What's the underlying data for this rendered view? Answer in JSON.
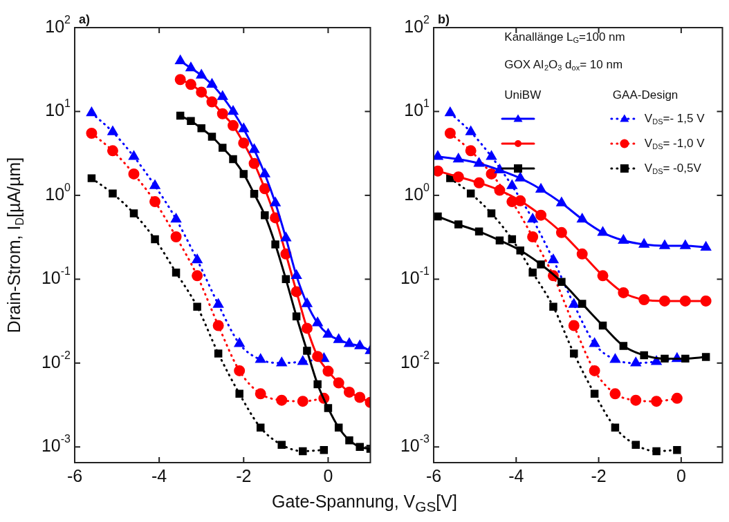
{
  "chart_data": [
    {
      "type": "line",
      "title": "a)",
      "xlabel": "Gate-Spannung, V$_{GS}$[V]",
      "ylabel": "Drain-Strom, I$_{D}$[µA/µm]",
      "xlim": [
        -6,
        1
      ],
      "xticks": [
        -6,
        -4,
        -2,
        0
      ],
      "ylim": [
        0.00065,
        100
      ],
      "log": "y",
      "grid": false,
      "yticks": [
        {
          "value": 0.001,
          "label": "10$^{-3}$"
        },
        {
          "value": 0.01,
          "label": "10$^{-2}$"
        },
        {
          "value": 0.1,
          "label": "10$^{-1}$"
        },
        {
          "value": 1,
          "label": "10$^{0}$"
        },
        {
          "value": 10,
          "label": "10$^{1}$"
        },
        {
          "value": 100,
          "label": "10$^{2}$"
        }
      ],
      "series": [
        {
          "color": "#0000ff",
          "marker": "triangle",
          "line_style": "solid",
          "x": [
            -3.5,
            -3.25,
            -3.0,
            -2.75,
            -2.5,
            -2.25,
            -2.0,
            -1.75,
            -1.5,
            -1.25,
            -1.0,
            -0.75,
            -0.5,
            -0.25,
            0,
            0.25,
            0.5,
            0.75,
            1.0
          ],
          "values": [
            40,
            33,
            27,
            21,
            15,
            10,
            6.2,
            3.5,
            1.8,
            0.81,
            0.31,
            0.11,
            0.051,
            0.03,
            0.022,
            0.019,
            0.017,
            0.016,
            0.014
          ]
        },
        {
          "color": "#ff0000",
          "marker": "circle",
          "line_style": "solid",
          "x": [
            -3.5,
            -3.25,
            -3.0,
            -2.75,
            -2.5,
            -2.25,
            -2.0,
            -1.75,
            -1.5,
            -1.25,
            -1.0,
            -0.75,
            -0.5,
            -0.25,
            0,
            0.25,
            0.5,
            0.75,
            1.0
          ],
          "values": [
            24,
            21,
            17,
            13,
            9.4,
            6.8,
            4.2,
            2.4,
            1.2,
            0.54,
            0.2,
            0.071,
            0.026,
            0.012,
            0.008,
            0.0058,
            0.0045,
            0.0039,
            0.0034
          ]
        },
        {
          "color": "#000000",
          "marker": "square",
          "line_style": "solid",
          "x": [
            -3.5,
            -3.25,
            -3.0,
            -2.75,
            -2.5,
            -2.25,
            -2.0,
            -1.75,
            -1.5,
            -1.25,
            -1.0,
            -0.75,
            -0.5,
            -0.25,
            0,
            0.25,
            0.5,
            0.75,
            1.0
          ],
          "values": [
            8.9,
            7.7,
            6.3,
            5.0,
            3.7,
            2.7,
            1.8,
            1.04,
            0.58,
            0.26,
            0.1,
            0.036,
            0.014,
            0.0056,
            0.0029,
            0.0017,
            0.0012,
            0.001,
            0.00095
          ]
        },
        {
          "color": "#0000ff",
          "marker": "triangle",
          "line_style": "dotted",
          "x": [
            -5.6,
            -5.1,
            -4.6,
            -4.1,
            -3.6,
            -3.1,
            -2.6,
            -2.1,
            -1.6,
            -1.1,
            -0.6,
            -0.1
          ],
          "values": [
            9.6,
            5.7,
            2.9,
            1.3,
            0.52,
            0.17,
            0.05,
            0.017,
            0.011,
            0.01,
            0.0104,
            0.0113
          ]
        },
        {
          "color": "#ff0000",
          "marker": "circle",
          "line_style": "dotted",
          "x": [
            -5.6,
            -5.1,
            -4.6,
            -4.1,
            -3.6,
            -3.1,
            -2.6,
            -2.1,
            -1.6,
            -1.1,
            -0.6,
            -0.1
          ],
          "values": [
            5.5,
            3.4,
            1.8,
            0.84,
            0.32,
            0.11,
            0.028,
            0.0081,
            0.0043,
            0.0036,
            0.0035,
            0.0038
          ]
        },
        {
          "color": "#000000",
          "marker": "square",
          "line_style": "dotted",
          "x": [
            -5.6,
            -5.1,
            -4.6,
            -4.1,
            -3.6,
            -3.1,
            -2.6,
            -2.1,
            -1.6,
            -1.1,
            -0.6,
            -0.1
          ],
          "values": [
            1.6,
            1.05,
            0.61,
            0.3,
            0.12,
            0.047,
            0.013,
            0.0043,
            0.0017,
            0.00106,
            0.00089,
            0.00092
          ]
        }
      ]
    },
    {
      "type": "line",
      "title": "b)",
      "xlim": [
        -6,
        1
      ],
      "xticks": [
        -6,
        -4,
        -2,
        0
      ],
      "ylim": [
        0.00065,
        100
      ],
      "log": "y",
      "grid": false,
      "legend": "top right",
      "yticks": [
        {
          "value": 0.001,
          "label": "10$^{-3}$"
        },
        {
          "value": 0.01,
          "label": "10$^{-2}$"
        },
        {
          "value": 0.1,
          "label": "10$^{-1}$"
        },
        {
          "value": 1,
          "label": "10$^{0}$"
        },
        {
          "value": 10,
          "label": "10$^{1}$"
        },
        {
          "value": 100,
          "label": "10$^{2}$"
        }
      ],
      "annotations": [
        "Kanallänge L$_{G}$=100 nm",
        "GOX Al$_{2}$O$_{3}$ d$_{ox}$= 10 nm",
        "UniBW",
        "GAA-Design"
      ],
      "series": [
        {
          "color": "#0000ff",
          "marker": "triangle",
          "line_style": "solid",
          "x": [
            -5.9,
            -5.4,
            -4.9,
            -4.4,
            -3.9,
            -3.4,
            -2.9,
            -2.4,
            -1.9,
            -1.4,
            -0.9,
            -0.4,
            0.1,
            0.6
          ],
          "values": [
            2.9,
            2.7,
            2.4,
            2.0,
            1.6,
            1.18,
            0.81,
            0.52,
            0.36,
            0.29,
            0.26,
            0.25,
            0.25,
            0.24
          ]
        },
        {
          "color": "#ff0000",
          "marker": "circle",
          "line_style": "solid",
          "x": [
            -5.9,
            -5.4,
            -4.9,
            -4.4,
            -3.9,
            -3.4,
            -2.9,
            -2.4,
            -1.9,
            -1.4,
            -0.9,
            -0.4,
            0.1,
            0.6
          ],
          "values": [
            1.95,
            1.66,
            1.41,
            1.15,
            0.86,
            0.58,
            0.36,
            0.2,
            0.11,
            0.069,
            0.057,
            0.055,
            0.055,
            0.055
          ]
        },
        {
          "color": "#000000",
          "marker": "square",
          "line_style": "solid",
          "x": [
            -5.9,
            -5.4,
            -4.9,
            -4.4,
            -3.9,
            -3.4,
            -2.9,
            -2.4,
            -1.9,
            -1.4,
            -0.9,
            -0.4,
            0.1,
            0.6
          ],
          "values": [
            0.56,
            0.45,
            0.37,
            0.29,
            0.22,
            0.15,
            0.093,
            0.051,
            0.028,
            0.016,
            0.0124,
            0.0113,
            0.0113,
            0.0118
          ]
        },
        {
          "name": "V$_{DS}$=- 1,5 V",
          "color": "#0000ff",
          "marker": "triangle",
          "line_style": "dotted",
          "x": [
            -5.6,
            -5.1,
            -4.6,
            -4.1,
            -3.6,
            -3.1,
            -2.6,
            -2.1,
            -1.6,
            -1.1,
            -0.6,
            -0.1
          ],
          "values": [
            9.6,
            5.7,
            2.9,
            1.3,
            0.52,
            0.17,
            0.05,
            0.017,
            0.011,
            0.01,
            0.0104,
            0.0113
          ]
        },
        {
          "name": "V$_{DS}$= -1,0 V",
          "color": "#ff0000",
          "marker": "circle",
          "line_style": "dotted",
          "x": [
            -5.6,
            -5.1,
            -4.6,
            -4.1,
            -3.6,
            -3.1,
            -2.6,
            -2.1,
            -1.6,
            -1.1,
            -0.6,
            -0.1
          ],
          "values": [
            5.5,
            3.4,
            1.8,
            0.84,
            0.32,
            0.11,
            0.028,
            0.0081,
            0.0043,
            0.0036,
            0.0035,
            0.0038
          ]
        },
        {
          "name": "V$_{DS}$= -0,5V",
          "color": "#000000",
          "marker": "square",
          "line_style": "dotted",
          "x": [
            -5.6,
            -5.1,
            -4.6,
            -4.1,
            -3.6,
            -3.1,
            -2.6,
            -2.1,
            -1.6,
            -1.1,
            -0.6,
            -0.1
          ],
          "values": [
            1.6,
            1.05,
            0.61,
            0.3,
            0.12,
            0.047,
            0.013,
            0.0043,
            0.0017,
            0.00106,
            0.00089,
            0.00092
          ]
        }
      ]
    }
  ]
}
